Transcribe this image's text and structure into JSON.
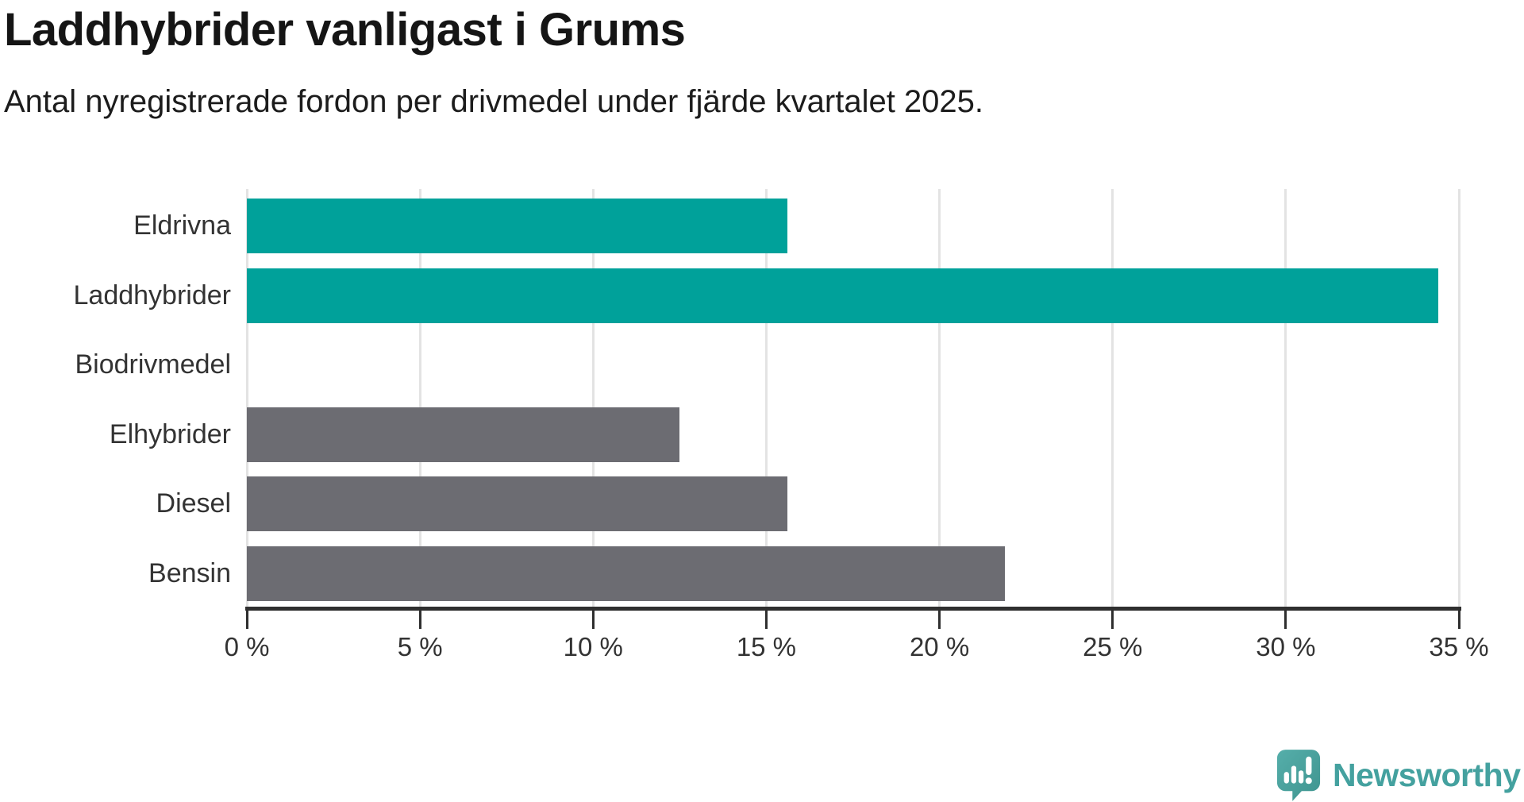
{
  "header": {
    "title": "Laddhybrider vanligast i Grums",
    "subtitle": "Antal nyregistrerade fordon per drivmedel under fjärde kvartalet 2025."
  },
  "chart_data": {
    "type": "bar",
    "orientation": "horizontal",
    "title": "Laddhybrider vanligast i Grums",
    "subtitle": "Antal nyregistrerade fordon per drivmedel under fjärde kvartalet 2025.",
    "categories": [
      "Eldrivna",
      "Laddhybrider",
      "Biodrivmedel",
      "Elhybrider",
      "Diesel",
      "Bensin"
    ],
    "values": [
      15.6,
      34.4,
      0,
      12.5,
      15.6,
      21.9
    ],
    "unit": "%",
    "bar_colors": [
      "#00a19a",
      "#00a19a",
      "#6c6c72",
      "#6c6c72",
      "#6c6c72",
      "#6c6c72"
    ],
    "highlight_color": "#00a19a",
    "default_color": "#6c6c72",
    "xlim": [
      0,
      35
    ],
    "x_ticks": [
      {
        "value": 0,
        "label": "0 %"
      },
      {
        "value": 5,
        "label": "5 %"
      },
      {
        "value": 10,
        "label": "10 %"
      },
      {
        "value": 15,
        "label": "15 %"
      },
      {
        "value": 20,
        "label": "20 %"
      },
      {
        "value": 25,
        "label": "25 %"
      },
      {
        "value": 30,
        "label": "30 %"
      },
      {
        "value": 35,
        "label": "35 %"
      }
    ],
    "grid": true,
    "gridline_color": "#e3e3e3",
    "axis_color": "#2f2f2f",
    "legend": "none"
  },
  "footer": {
    "logo_text": "Newsworthy",
    "logo_icon": "newsworthy-bubble-bar-chart-icon",
    "logo_icon_color": "#4aa5a1",
    "logo_text_color": "#44a19f"
  }
}
